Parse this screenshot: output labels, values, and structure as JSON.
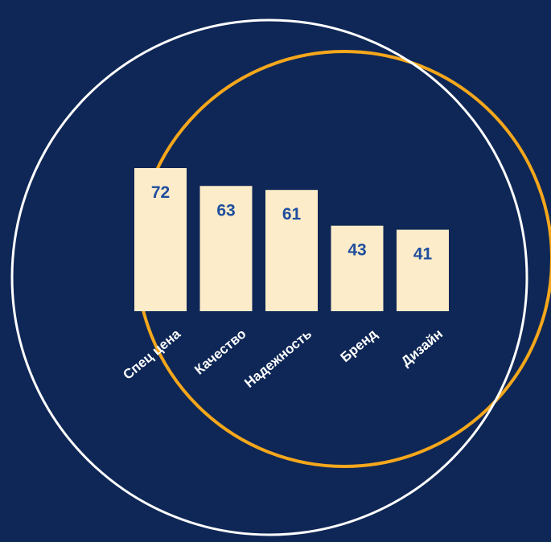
{
  "colors": {
    "background": "#0e2756",
    "bar": "#fdecc9",
    "value_text": "#1f4e9e",
    "label_text": "#ffffff",
    "outer_ring": "#f5a71c",
    "inner_ring": "#ffffff"
  },
  "chart_data": {
    "type": "bar",
    "title": "",
    "xlabel": "",
    "ylabel": "",
    "categories": [
      "Спец цена",
      "Качество",
      "Надежность",
      "Бренд",
      "Дизайн"
    ],
    "values": [
      72,
      63,
      61,
      43,
      41
    ],
    "ylim": [
      0,
      72
    ],
    "grid": false,
    "legend": "none"
  }
}
